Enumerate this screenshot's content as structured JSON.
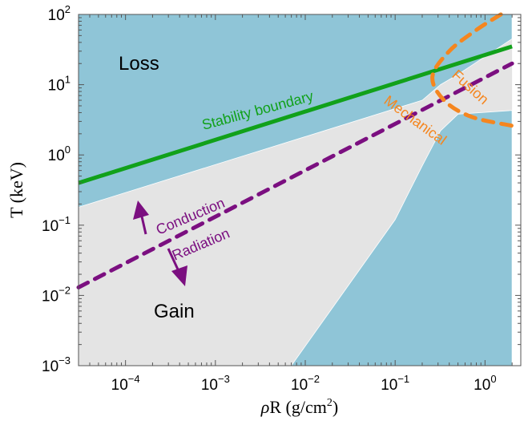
{
  "chart_data": {
    "type": "line",
    "x_scale": "log",
    "y_scale": "log",
    "xlim": [
      3e-05,
      2.5
    ],
    "ylim": [
      0.001,
      100
    ],
    "xlabel_parts": {
      "symbol": "ρ",
      "rest": "R (g/cm",
      "sup": "2",
      "close": ")"
    },
    "ylabel": "T (keV)",
    "x_ticks": [
      {
        "value": 0.0001,
        "base": "10",
        "exp": "−4"
      },
      {
        "value": 0.001,
        "base": "10",
        "exp": "−3"
      },
      {
        "value": 0.01,
        "base": "10",
        "exp": "−2"
      },
      {
        "value": 0.1,
        "base": "10",
        "exp": "−1"
      },
      {
        "value": 1,
        "base": "10",
        "exp": "0"
      }
    ],
    "y_ticks": [
      {
        "value": 0.001,
        "base": "10",
        "exp": "−3"
      },
      {
        "value": 0.01,
        "base": "10",
        "exp": "−2"
      },
      {
        "value": 0.1,
        "base": "10",
        "exp": "−1"
      },
      {
        "value": 1,
        "base": "10",
        "exp": "0"
      },
      {
        "value": 10,
        "base": "10",
        "exp": "1"
      },
      {
        "value": 100,
        "base": "10",
        "exp": "2"
      }
    ],
    "regions": [
      {
        "name": "loss-region-upper",
        "color": "#8fc5d7",
        "points": [
          [
            3e-05,
            0.18
          ],
          [
            0.2,
            6
          ],
          [
            0.32,
            10
          ],
          [
            0.5,
            14
          ],
          [
            2.0,
            45
          ],
          [
            2.0,
            100
          ],
          [
            3e-05,
            100
          ]
        ]
      },
      {
        "name": "loss-region-lower",
        "color": "#8fc5d7",
        "points": [
          [
            0.007,
            0.001
          ],
          [
            0.1,
            0.12
          ],
          [
            0.2,
            0.7
          ],
          [
            0.32,
            2.2
          ],
          [
            0.5,
            3.8
          ],
          [
            2.0,
            4.3
          ],
          [
            2.0,
            0.001
          ]
        ]
      }
    ],
    "gain_fill": "#e4e4e4",
    "data_xlim": [
      3e-05,
      2.0
    ],
    "series": [
      {
        "role": "stability",
        "color": "#11a11a",
        "dashed": false,
        "points": [
          [
            3e-05,
            0.4
          ],
          [
            2.0,
            35
          ]
        ]
      },
      {
        "role": "conduction-radiation",
        "color": "#7b0f80",
        "dashed": true,
        "points": [
          [
            3e-05,
            0.013
          ],
          [
            2.0,
            20
          ]
        ]
      },
      {
        "role": "fusion",
        "color": "#f5861f",
        "dashed": true,
        "points": [
          [
            1.5,
            100
          ],
          [
            0.8,
            60
          ],
          [
            0.4,
            30
          ],
          [
            0.26,
            13
          ],
          [
            0.35,
            6
          ],
          [
            0.7,
            3.5
          ],
          [
            2.0,
            2.6
          ]
        ]
      }
    ],
    "labels": {
      "loss": "Loss",
      "gain": "Gain",
      "stability": "Stability boundary",
      "conduction": "Conduction",
      "radiation": "Radiation",
      "mechanical": "Mechanical",
      "fusion": "Fusion"
    },
    "colors": {
      "loss": "#8fc5d7",
      "gain": "#e4e4e4",
      "stability": "#11a11a",
      "conduction": "#7b0f80",
      "fusion": "#f5861f",
      "mechanical": "#f5861f"
    }
  }
}
